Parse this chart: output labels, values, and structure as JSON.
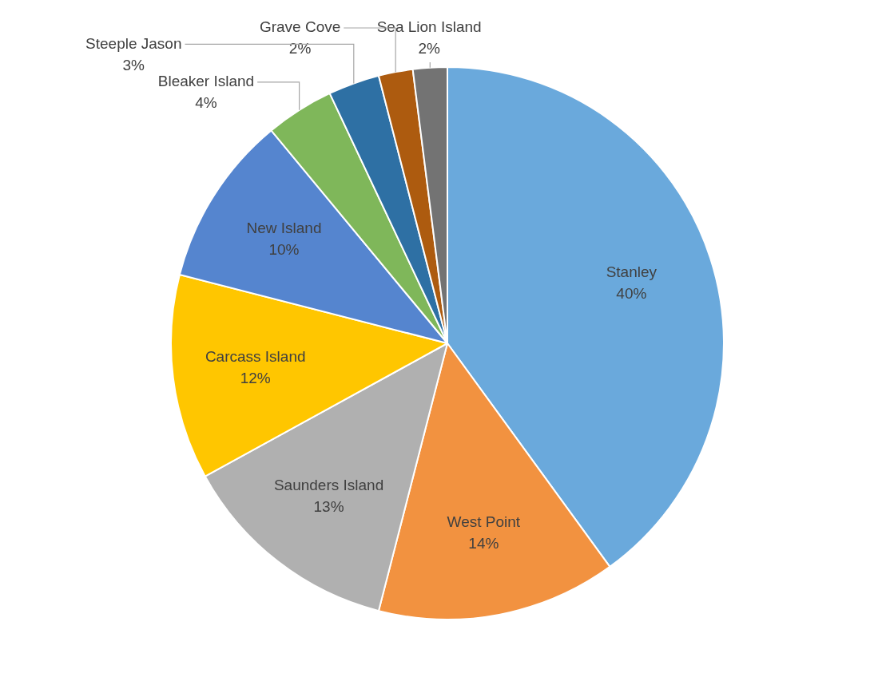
{
  "chart_data": {
    "type": "pie",
    "categories": [
      "Stanley",
      "West Point",
      "Saunders Island",
      "Carcass Island",
      "New Island",
      "Bleaker Island",
      "Steeple Jason",
      "Grave Cove",
      "Sea Lion Island"
    ],
    "values": [
      40,
      14,
      13,
      12,
      10,
      4,
      3,
      2,
      2
    ],
    "value_labels": [
      "40%",
      "14%",
      "13%",
      "12%",
      "10%",
      "4%",
      "3%",
      "2%",
      "2%"
    ],
    "colors": [
      "#6aa9dc",
      "#f29240",
      "#b0b0b0",
      "#ffc600",
      "#5585cf",
      "#7fb75a",
      "#2e70a4",
      "#ad5b0f",
      "#737373"
    ],
    "legend": false
  }
}
